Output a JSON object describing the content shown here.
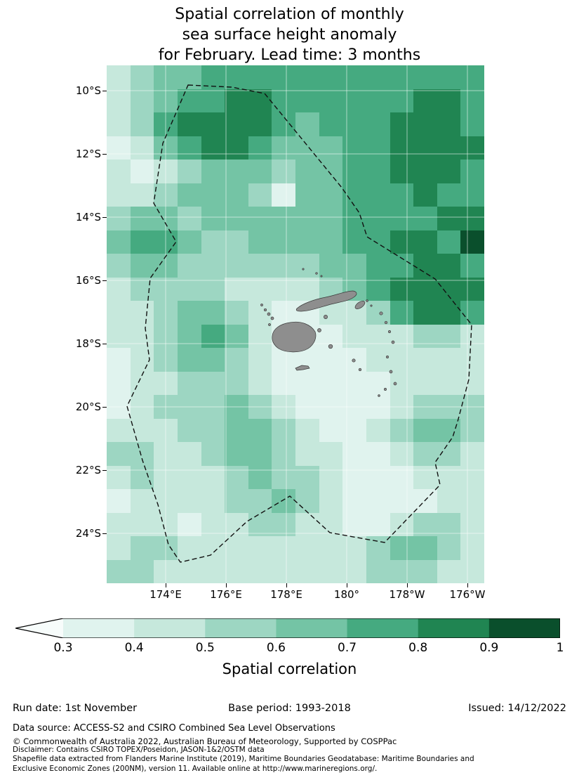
{
  "title": {
    "line1": "Spatial correlation of monthly",
    "line2": "sea surface height anomaly",
    "line3": "for February. Lead time: 3 months"
  },
  "chart_data": {
    "type": "heatmap",
    "title": "Spatial correlation of monthly sea surface height anomaly for February. Lead time: 3 months",
    "region": "Fiji EEZ (dashed boundary) with Fiji islands shown in grey",
    "lat_ticks": [
      "10°S",
      "12°S",
      "14°S",
      "16°S",
      "18°S",
      "20°S",
      "22°S",
      "24°S"
    ],
    "lon_ticks": [
      "174°E",
      "176°E",
      "178°E",
      "180°",
      "178°W",
      "176°W"
    ],
    "lat_range_estimate": [
      "9.2°S",
      "25.6°S"
    ],
    "lon_range_estimate": [
      "172°E",
      "175.2°W"
    ],
    "classes": [
      {
        "range": "<0.3",
        "color": "#f7fcfb"
      },
      {
        "range": "0.3-0.4",
        "color": "#e0f3ee"
      },
      {
        "range": "0.4-0.5",
        "color": "#c6e8dc"
      },
      {
        "range": "0.5-0.6",
        "color": "#9dd6c2"
      },
      {
        "range": "0.6-0.7",
        "color": "#74c4a5"
      },
      {
        "range": "0.7-0.8",
        "color": "#45aa80"
      },
      {
        "range": "0.8-0.9",
        "color": "#208552"
      },
      {
        "range": "0.9-1.0",
        "color": "#0a4f2c"
      }
    ],
    "grid_note": "Each digit is a correlation class index into classes[]; 16 columns (west to east) x 22 rows (north to south), estimated from the figure",
    "grid_class_rows": [
      "2344555555555555",
      "2345566555555665",
      "2356666545556665",
      "1245665444556666",
      "2123444344556665",
      "2234443144555655",
      "3443444444555566",
      "4554334444556657",
      "3443333334455665",
      "2333322223456666",
      "2234432112235665",
      "2234542111222332",
      "1234432111122222",
      "1223332111112222",
      "1233343211112333",
      "2223344321123443",
      "3322344322112332",
      "2322234332111222",
      "1222233432111122",
      "2221223322112332",
      "2332222222234432",
      "3322222222233322"
    ]
  },
  "colorbar": {
    "tick_labels": [
      "0.3",
      "0.4",
      "0.5",
      "0.6",
      "0.7",
      "0.8",
      "0.9",
      "1"
    ],
    "label": "Spatial correlation"
  },
  "footer": {
    "run_date": "Run date: 1st November",
    "base_period": "Base period: 1993-2018",
    "issued": "Issued: 14/12/2022",
    "data_source": "Data source: ACCESS-S2 and CSIRO Combined Sea Level Observations",
    "copyright": "© Commonwealth of Australia 2022, Australian Bureau of Meteorology, Supported by COSPPac",
    "disclaimer": "Disclaimer: Contains CSIRO TOPEX/Poseidon, JASON-1&2/OSTM data",
    "shapefile_line1": "Shapefile data extracted from Flanders Marine Institute (2019), Maritime Boundaries Geodatabase: Maritime Boundaries and",
    "shapefile_line2": "Exclusive Economic Zones (200NM), version 11. Available online at http://www.marineregions.org/."
  }
}
